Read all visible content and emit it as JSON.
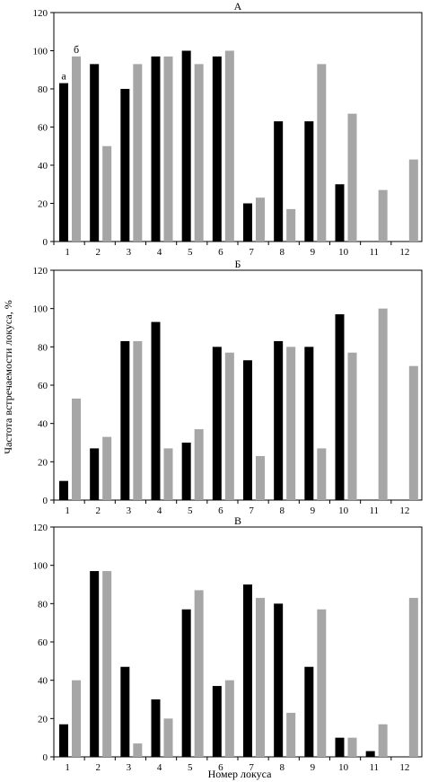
{
  "figure": {
    "ylabel": "Частота встречаемости локуса, %",
    "xlabel": "Номер локуса",
    "series_colors": {
      "a": "#000000",
      "b": "#a6a6a6"
    }
  },
  "chart_data": [
    {
      "type": "bar",
      "title": "А",
      "categories": [
        "1",
        "2",
        "3",
        "4",
        "5",
        "6",
        "7",
        "8",
        "9",
        "10",
        "11",
        "12"
      ],
      "ylim": [
        0,
        120
      ],
      "yticks": [
        0,
        20,
        40,
        60,
        80,
        100,
        120
      ],
      "grid": false,
      "series": [
        {
          "name": "а",
          "values": [
            83,
            93,
            80,
            97,
            100,
            97,
            20,
            63,
            63,
            30,
            0,
            0
          ]
        },
        {
          "name": "б",
          "values": [
            97,
            50,
            93,
            97,
            93,
            100,
            23,
            17,
            93,
            67,
            27,
            43
          ]
        }
      ]
    },
    {
      "type": "bar",
      "title": "Б",
      "categories": [
        "1",
        "2",
        "3",
        "4",
        "5",
        "6",
        "7",
        "8",
        "9",
        "10",
        "11",
        "12"
      ],
      "ylim": [
        0,
        120
      ],
      "yticks": [
        0,
        20,
        40,
        60,
        80,
        100,
        120
      ],
      "grid": false,
      "series": [
        {
          "values": [
            10,
            27,
            83,
            93,
            30,
            80,
            73,
            83,
            80,
            97,
            0,
            0
          ]
        },
        {
          "values": [
            53,
            33,
            83,
            27,
            37,
            77,
            23,
            80,
            27,
            77,
            100,
            70
          ]
        }
      ]
    },
    {
      "type": "bar",
      "title": "В",
      "categories": [
        "1",
        "2",
        "3",
        "4",
        "5",
        "6",
        "7",
        "8",
        "9",
        "10",
        "11",
        "12"
      ],
      "ylim": [
        0,
        120
      ],
      "yticks": [
        0,
        20,
        40,
        60,
        80,
        100,
        120
      ],
      "grid": false,
      "series": [
        {
          "values": [
            17,
            97,
            47,
            30,
            77,
            37,
            90,
            80,
            47,
            10,
            3,
            0
          ]
        },
        {
          "values": [
            40,
            97,
            7,
            20,
            87,
            40,
            83,
            23,
            77,
            10,
            17,
            83
          ]
        }
      ]
    }
  ]
}
